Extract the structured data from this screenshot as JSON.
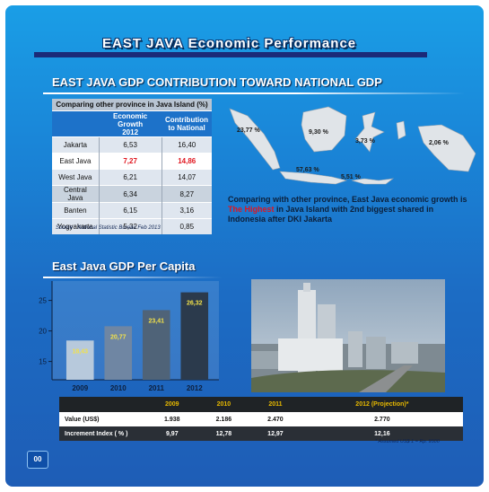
{
  "header": {
    "title": "EAST JAVA Economic Performance"
  },
  "gdp_section": {
    "title": "EAST JAVA GDP CONTRIBUTION TOWARD NATIONAL GDP",
    "table": {
      "caption": "Comparing other province in Java Island (%)",
      "headers": {
        "growth": "Economic Growth\n2012",
        "contribution": "Contribution\nto National"
      },
      "rows": [
        {
          "province": "Jakarta",
          "growth": "6,53",
          "contribution": "16,40"
        },
        {
          "province": "East Java",
          "growth": "7,27",
          "contribution": "14,86"
        },
        {
          "province": "West Java",
          "growth": "6,21",
          "contribution": "14,07"
        },
        {
          "province": "Central Java",
          "growth": "6,34",
          "contribution": "8,27"
        },
        {
          "province": "Banten",
          "growth": "6,15",
          "contribution": "3,16"
        },
        {
          "province": "Yogyakarta",
          "growth": "5,32",
          "contribution": "0,85"
        }
      ]
    },
    "source": "Source : National Statistic Bureau Feb 2013",
    "map_labels": [
      "23,77 %",
      "9,30 %",
      "3,73 %",
      "2,06 %",
      "57,63 %",
      "5,51 %"
    ],
    "comment": {
      "part1": "Comparing with other province, East Java economic growth is",
      "highlight": "The Highest",
      "part2": "in Java Island with 2nd biggest shared in Indonesia after DKI Jakarta"
    }
  },
  "per_capita": {
    "title": "East Java GDP Per Capita",
    "chart_data": {
      "type": "bar",
      "categories": [
        "2009",
        "2010",
        "2011",
        "2012"
      ],
      "values": [
        18.43,
        20.77,
        23.41,
        26.32
      ],
      "value_labels": [
        "18,43",
        "20,77",
        "23,41",
        "26,32"
      ],
      "yticks": [
        "15",
        "20",
        "25"
      ],
      "ylim": [
        12,
        27
      ],
      "xlabel": "",
      "ylabel": ""
    }
  },
  "bottom_table": {
    "headers": [
      "2009",
      "2010",
      "2011",
      "2012 (Projection)*"
    ],
    "rows": [
      {
        "label": "Value (US$)",
        "values": [
          "1.938",
          "2.186",
          "2.470",
          "2.770"
        ]
      },
      {
        "label": "Increment Index ( % )",
        "values": [
          "9,97",
          "12,78",
          "12,97",
          "12,16"
        ]
      }
    ],
    "note": "* Assumed US$ 1 = Rp. 9500"
  },
  "page_number": "00",
  "colors": {
    "accent_red": "#e0161f",
    "header_year": "#e6b800",
    "bar_2009": "#b7c9dc",
    "bar_2012": "#2b3a4c"
  }
}
